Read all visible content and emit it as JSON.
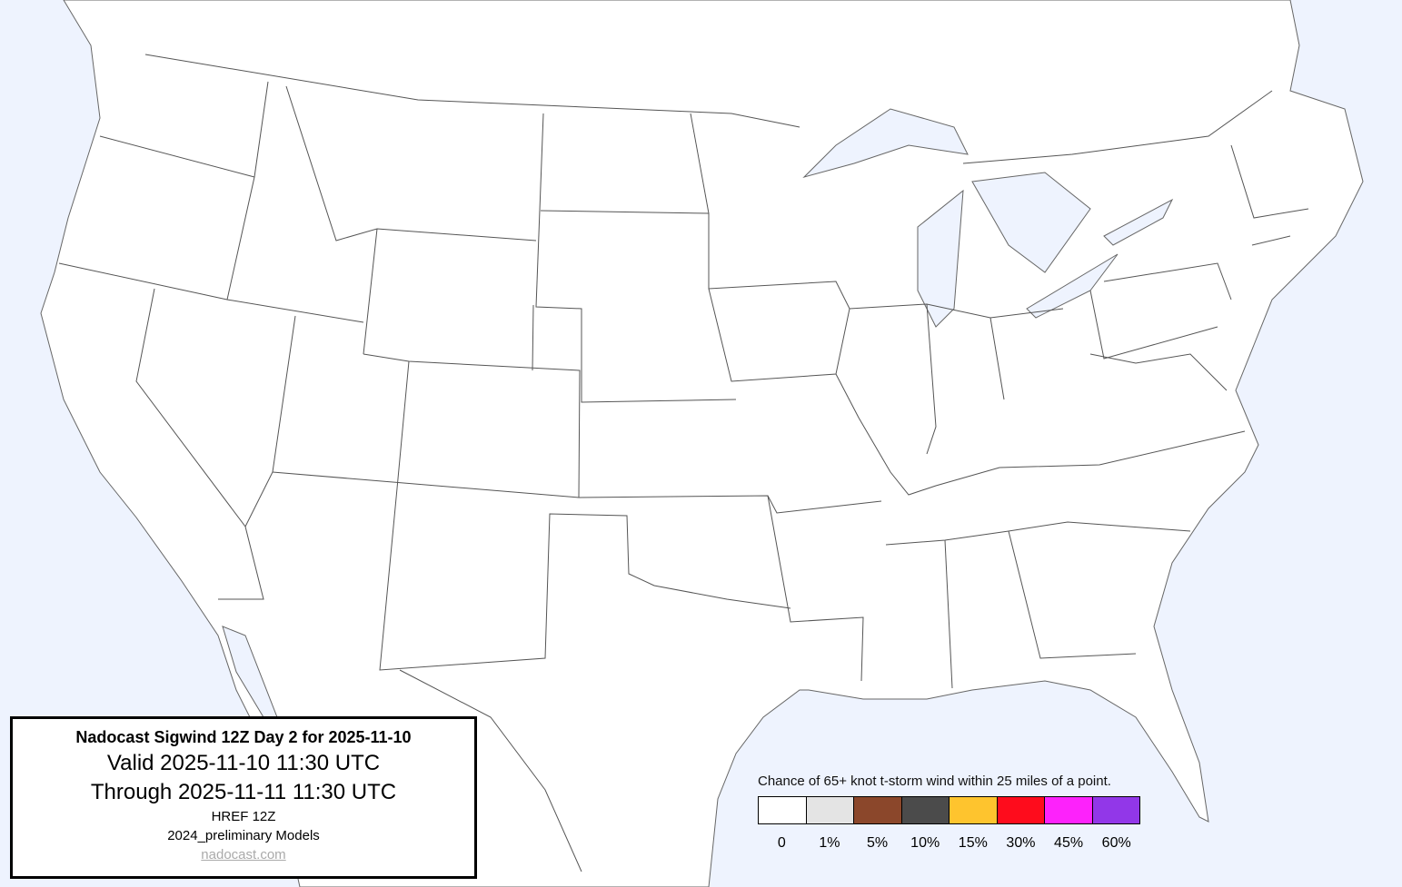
{
  "info_box": {
    "title": "Nadocast Sigwind 12Z Day 2 for 2025-11-10",
    "valid": "Valid 2025-11-10 11:30 UTC",
    "through": "Through 2025-11-11 11:30 UTC",
    "model": "HREF 12Z",
    "models_version": "2024_preliminary Models",
    "link": "nadocast.com"
  },
  "legend": {
    "caption": "Chance of 65+ knot t-storm wind within 25 miles of a point.",
    "bins": [
      {
        "label": "0",
        "color": "#ffffff"
      },
      {
        "label": "1%",
        "color": "#e4e4e4"
      },
      {
        "label": "5%",
        "color": "#8b472b"
      },
      {
        "label": "10%",
        "color": "#4b4b4b"
      },
      {
        "label": "15%",
        "color": "#fec42e"
      },
      {
        "label": "30%",
        "color": "#fe0c1c"
      },
      {
        "label": "45%",
        "color": "#fd22fb"
      },
      {
        "label": "60%",
        "color": "#9237e8"
      }
    ]
  },
  "map": {
    "water_color": "#eef3fe",
    "land_color": "#ffffff",
    "border_color": "#555555",
    "forecast_areas": []
  }
}
